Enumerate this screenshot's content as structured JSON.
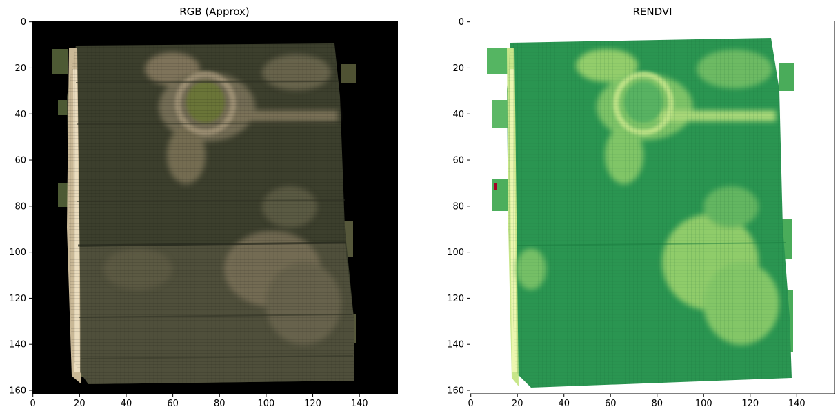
{
  "chart_data": [
    {
      "type": "heatmap",
      "title": "RGB (Approx)",
      "image_width": 157,
      "image_height": 162,
      "xlim": [
        0,
        157
      ],
      "ylim": [
        162,
        0
      ],
      "xticks": [
        0,
        20,
        40,
        60,
        80,
        100,
        120,
        140
      ],
      "yticks": [
        0,
        20,
        40,
        60,
        80,
        100,
        120,
        140,
        160
      ],
      "background_color": "#000000",
      "field_extent_x": [
        17,
        136
      ],
      "field_extent_y": [
        10,
        156
      ],
      "colors": {
        "field_dark": "#3b3e2b",
        "field_light": "#8d8466",
        "circle_center": "#6b7a3a",
        "edge_strip": "#e8d7b8"
      }
    },
    {
      "type": "heatmap",
      "title": "RENDVI",
      "image_width": 157,
      "image_height": 162,
      "xlim": [
        0,
        157
      ],
      "ylim": [
        162,
        0
      ],
      "xticks": [
        0,
        20,
        40,
        60,
        80,
        100,
        120,
        140
      ],
      "yticks": [
        0,
        20,
        40,
        60,
        80,
        100,
        120,
        140,
        160
      ],
      "background_color": "#ffffff",
      "colormap": "RdYlGn",
      "field_extent_x": [
        17,
        136
      ],
      "field_extent_y": [
        8,
        157
      ],
      "colors": {
        "high": "#1e8f4a",
        "mid": "#4fb060",
        "low": "#d9ef8b",
        "very_low": "#a50026"
      }
    }
  ]
}
